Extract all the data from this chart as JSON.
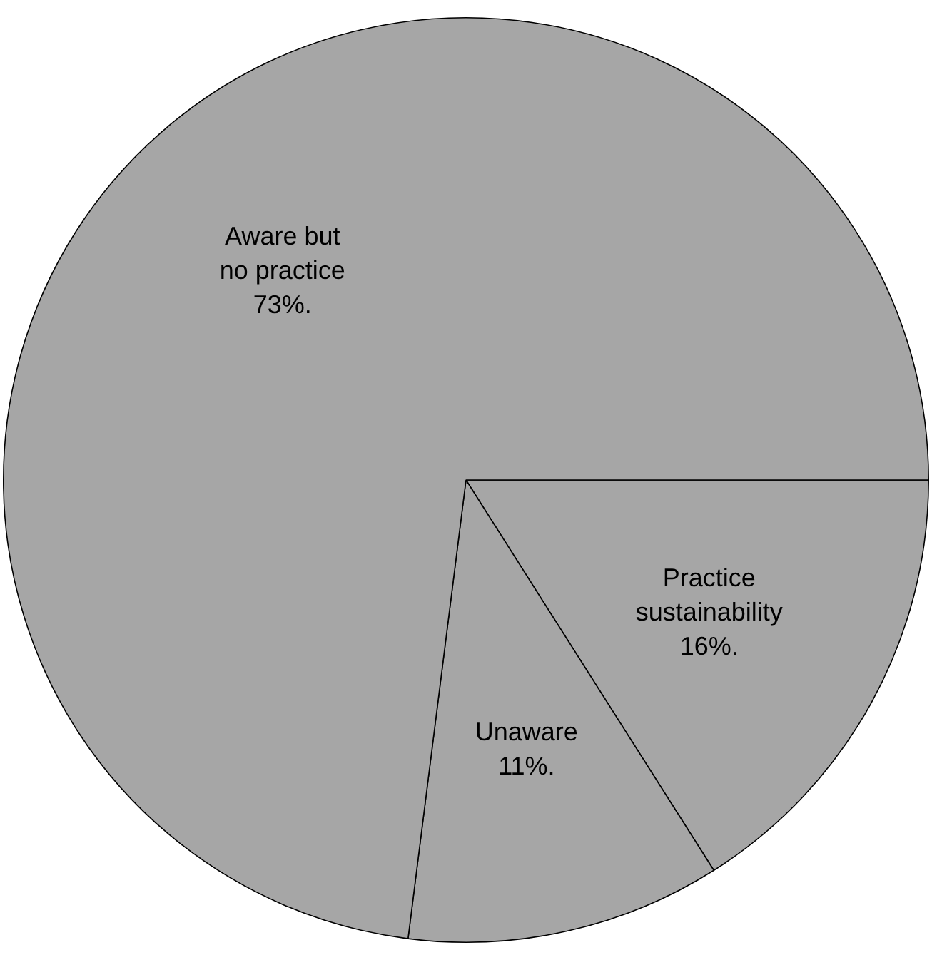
{
  "chart_data": {
    "type": "pie",
    "categories": [
      "Practice sustainability",
      "Unaware",
      "Aware but no practice"
    ],
    "values": [
      16,
      11,
      73
    ],
    "colors": [
      "#a6a6a6",
      "#a6a6a6",
      "#a6a6a6"
    ],
    "value_labels": [
      "16%.",
      "11%.",
      "73%."
    ],
    "legend": false
  }
}
